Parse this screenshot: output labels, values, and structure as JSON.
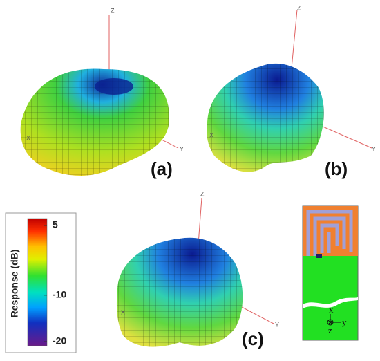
{
  "panels": [
    {
      "label": "(a)",
      "axes": [
        "Z",
        "X",
        "Y"
      ]
    },
    {
      "label": "(b)",
      "axes": [
        "Z",
        "X",
        "Y"
      ]
    },
    {
      "label": "(c)",
      "axes": [
        "Z",
        "X",
        "Y"
      ]
    }
  ],
  "colorbar": {
    "label": "Response  (dB)",
    "ticks": [
      5,
      -10,
      -20
    ]
  },
  "inset": {
    "axes": [
      "x",
      "y",
      "z"
    ]
  }
}
